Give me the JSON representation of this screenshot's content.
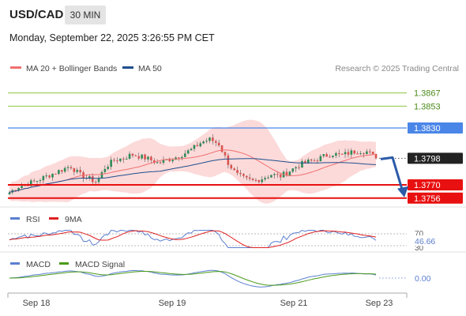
{
  "header": {
    "symbol": "USD/CAD",
    "timeframe": "30 MIN",
    "datetime": "Monday, September 22, 2025 3:26:55 PM CET"
  },
  "credit": "Research © 2025 Trading Central",
  "colors": {
    "candle_up": "#2e8b57",
    "candle_down": "#d9534f",
    "ma20": "#f07070",
    "ma50": "#1f4e8c",
    "bollinger_fill": "#fbd3d3",
    "resistance": "#8dc63f",
    "pivot": "#4a86e8",
    "support": "#e81010",
    "current_tag": "#222222",
    "arrow": "#2b5aa8",
    "rsi": "#5b7fd0",
    "rsi_ma": "#e02020",
    "macd": "#5b7fd0",
    "macd_signal": "#4a9a1a"
  },
  "chart_data": [
    {
      "type": "candlestick",
      "title": "USD/CAD",
      "legend": [
        "MA 20 + Bollinger Bands",
        "MA 50"
      ],
      "x_ticks": [
        "Sep 18",
        "Sep 19",
        "Sep 21",
        "Sep 23"
      ],
      "close_path": [
        1.3762,
        1.3768,
        1.3771,
        1.3774,
        1.3778,
        1.3782,
        1.3786,
        1.379,
        1.3781,
        1.3777,
        1.3773,
        1.3789,
        1.3796,
        1.3798,
        1.3802,
        1.38,
        1.3797,
        1.3793,
        1.3796,
        1.3799,
        1.3803,
        1.3808,
        1.3815,
        1.3818,
        1.3813,
        1.3794,
        1.3781,
        1.3776,
        1.3774,
        1.3777,
        1.3781,
        1.3779,
        1.3784,
        1.379,
        1.3794,
        1.3796,
        1.38,
        1.3803,
        1.3801,
        1.3804,
        1.3806,
        1.3805,
        1.3798
      ],
      "levels": {
        "resistance": [
          1.3867,
          1.3853
        ],
        "pivot": 1.383,
        "last": 1.3798,
        "support": [
          1.377,
          1.3756
        ]
      },
      "ylim": [
        1.375,
        1.3885
      ]
    },
    {
      "type": "line",
      "title": "",
      "legend": [
        "RSI",
        "9MA"
      ],
      "last_value": "46.66",
      "levels": [
        "70",
        "30"
      ],
      "ylim": [
        25,
        75
      ]
    },
    {
      "type": "line",
      "title": "",
      "legend": [
        "MACD",
        "MACD Signal"
      ],
      "last_value": "0.00",
      "ylim": [
        -0.0012,
        0.0008
      ]
    }
  ]
}
